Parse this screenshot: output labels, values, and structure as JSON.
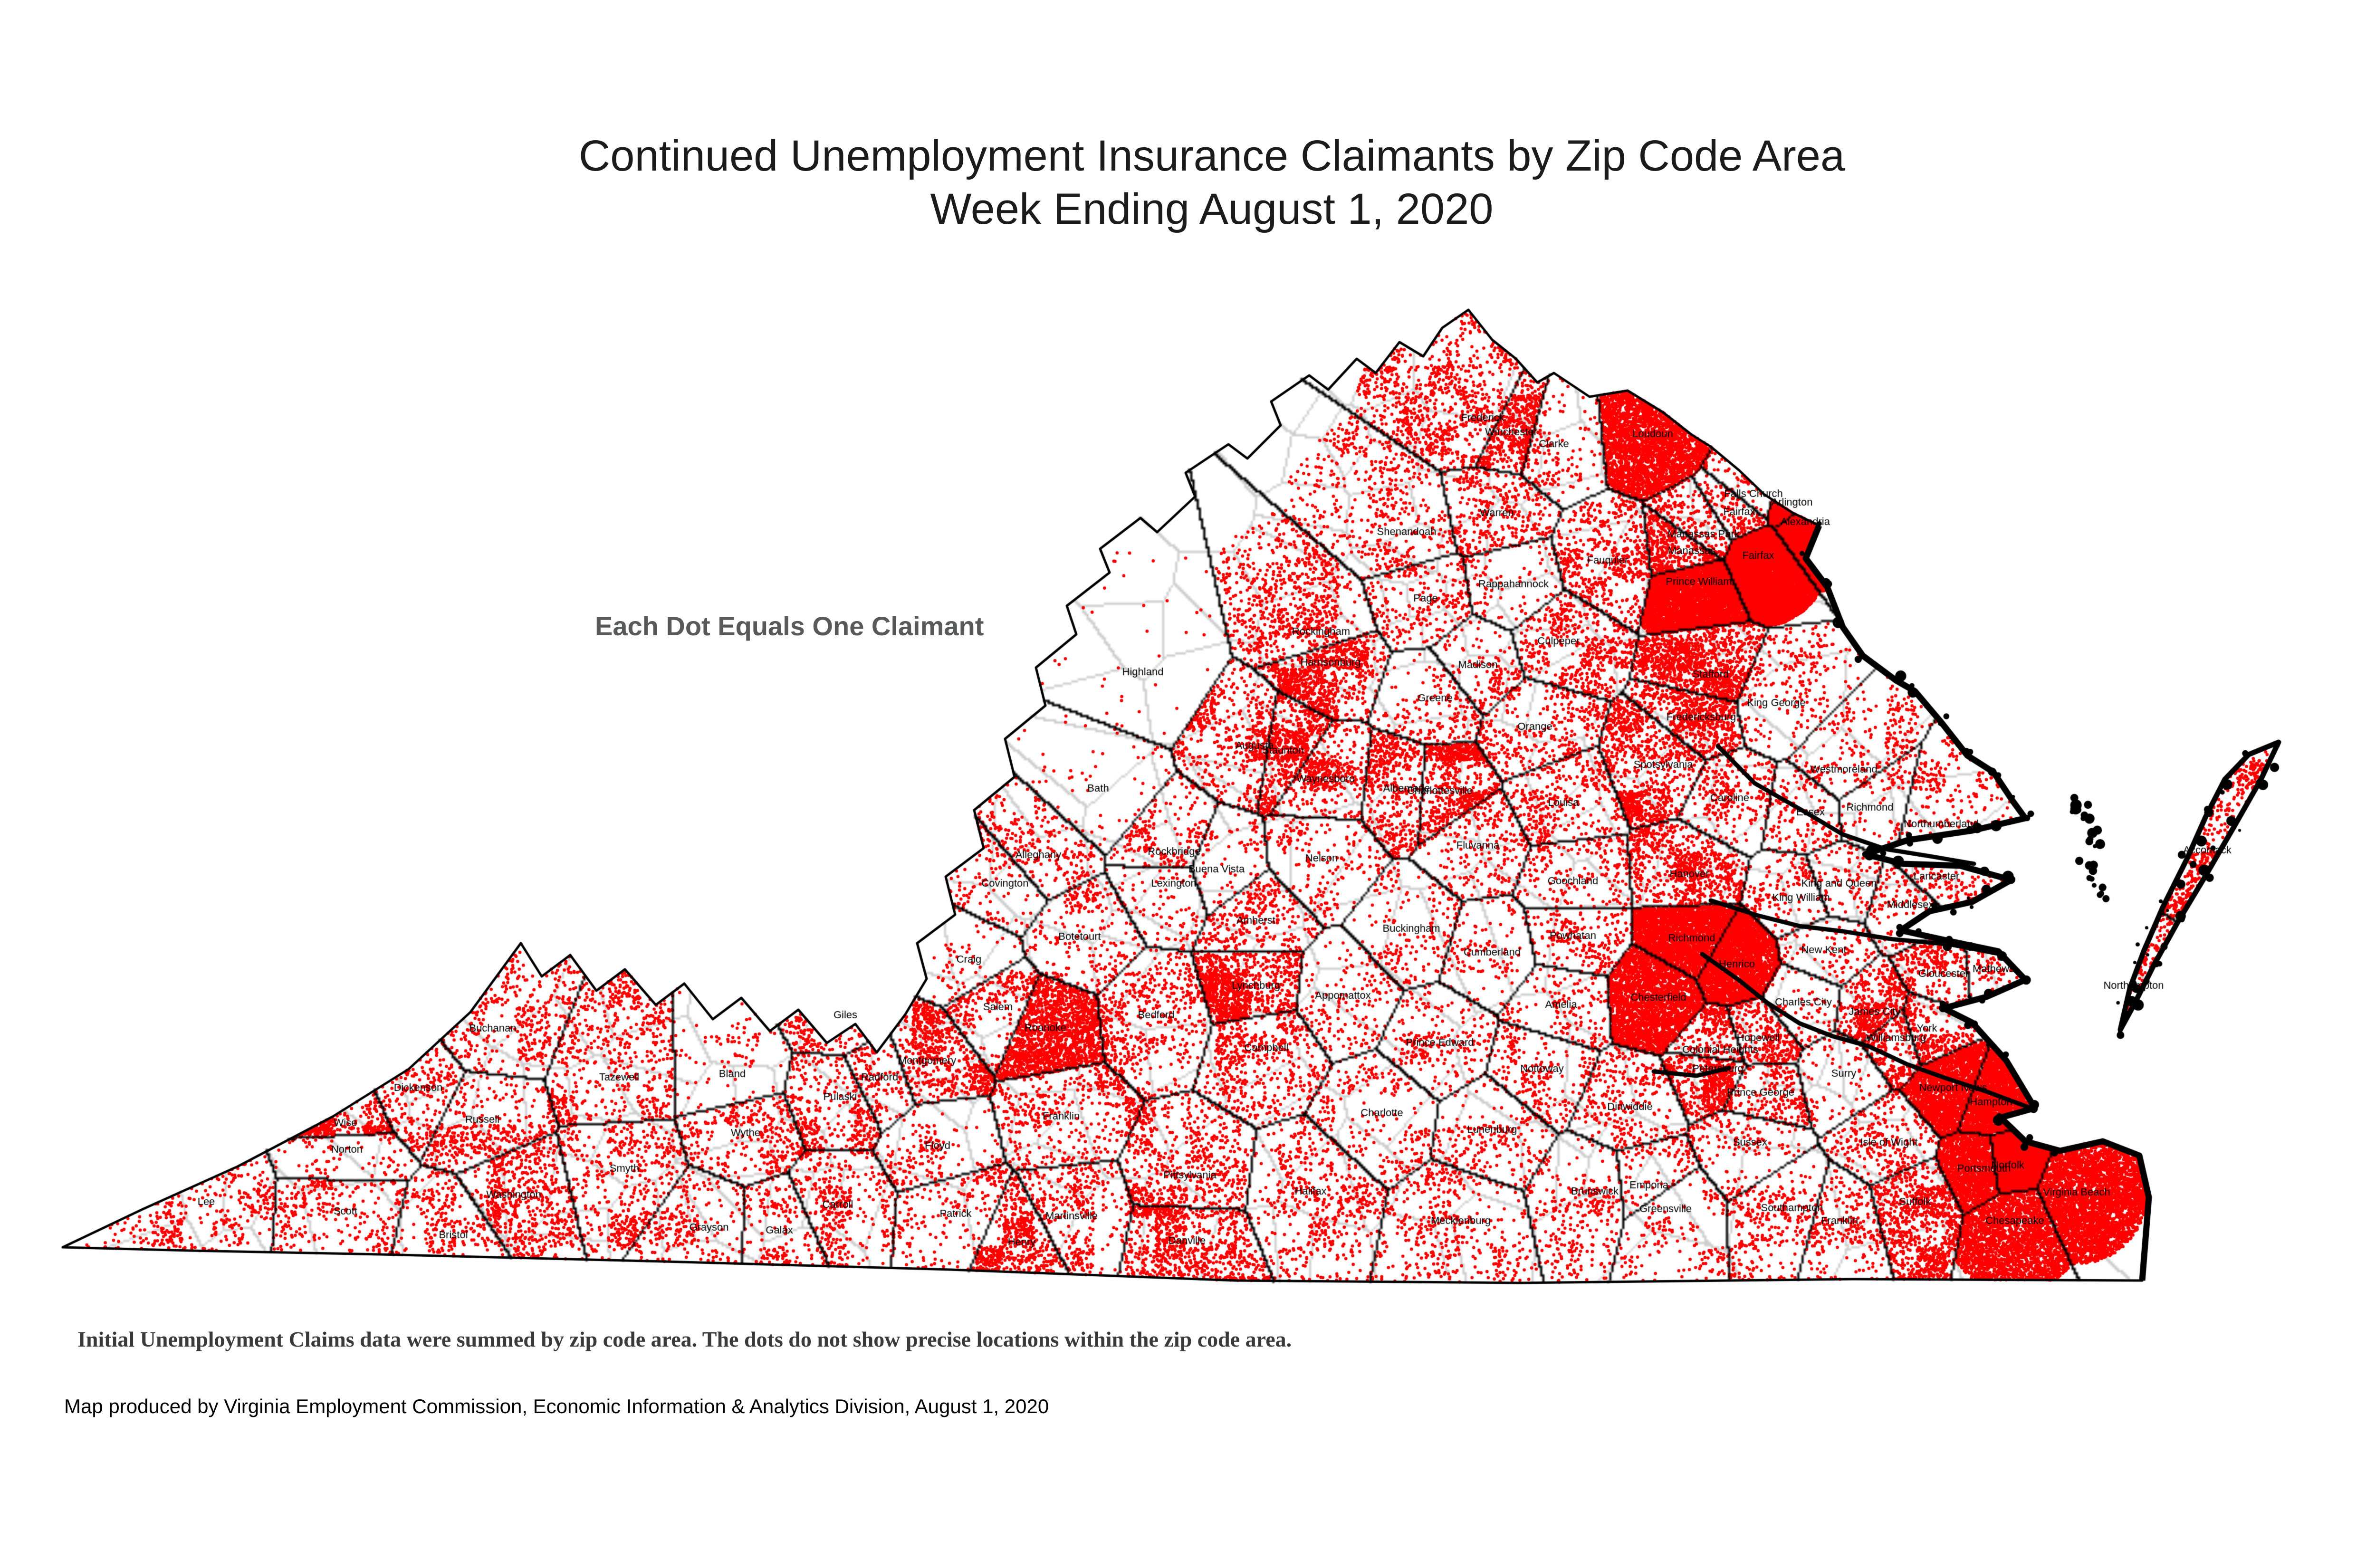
{
  "title": {
    "line1": "Continued Unemployment Insurance Claimants by Zip Code Area",
    "line2": "Week Ending August 1, 2020"
  },
  "legend": {
    "text": "Each Dot Equals One Claimant"
  },
  "footnotes": {
    "methodology": "Initial Unemployment Claims data were summed by zip code area. The dots do not show precise locations within the zip code area.",
    "credit": "Map produced by Virginia Employment Commission, Economic Information & Analytics Division,  August 1, 2020"
  },
  "map": {
    "dot_color": "#FF0000",
    "county_line_color": "#000000",
    "zip_line_color": "#B4B4B4",
    "water_detail_color": "#000000",
    "background": "#FFFFFF",
    "dot_radius": 3.4,
    "regions": [
      [
        "Lee",
        434,
        2530,
        350,
        1
      ],
      [
        "Scott",
        727,
        2550,
        300,
        1
      ],
      [
        "Wise",
        727,
        2364,
        650,
        1
      ],
      [
        "Norton",
        730,
        2420,
        90,
        1
      ],
      [
        "Dickenson",
        880,
        2290,
        300,
        1
      ],
      [
        "Buchanan",
        1037,
        2165,
        380,
        1
      ],
      [
        "Russell",
        1015,
        2357,
        420,
        1
      ],
      [
        "Tazewell",
        1303,
        2268,
        650,
        1
      ],
      [
        "Smyth",
        1314,
        2460,
        480,
        1
      ],
      [
        "Washington",
        1081,
        2515,
        600,
        1
      ],
      [
        "Bristol",
        954,
        2600,
        260,
        1
      ],
      [
        "Grayson",
        1492,
        2584,
        260,
        1
      ],
      [
        "Galax",
        1640,
        2590,
        220,
        1
      ],
      [
        "Carroll",
        1763,
        2536,
        420,
        1
      ],
      [
        "Wythe",
        1569,
        2385,
        420,
        1
      ],
      [
        "Bland",
        1541,
        2261,
        90,
        1
      ],
      [
        "Giles",
        1779,
        2137,
        220,
        1
      ],
      [
        "Pulaski",
        1768,
        2309,
        450,
        1
      ],
      [
        "Radford",
        1851,
        2268,
        220,
        1
      ],
      [
        "Montgomery",
        1951,
        2233,
        750,
        1
      ],
      [
        "Floyd",
        1973,
        2412,
        180,
        1
      ],
      [
        "Patrick",
        2011,
        2555,
        260,
        1
      ],
      [
        "Henry",
        2150,
        2615,
        600,
        1
      ],
      [
        "Martinsville",
        2255,
        2560,
        380,
        1
      ],
      [
        "Franklin",
        2233,
        2350,
        520,
        1
      ],
      [
        "Roanoke",
        2200,
        2164,
        1600,
        1
      ],
      [
        "Salem",
        2100,
        2120,
        320,
        1
      ],
      [
        "Botetourt",
        2272,
        1972,
        300,
        1
      ],
      [
        "Craig",
        2039,
        2020,
        80,
        1
      ],
      [
        "Alleghany",
        2185,
        1800,
        260,
        1
      ],
      [
        "Covington",
        2115,
        1860,
        160,
        1
      ],
      [
        "Bath",
        2311,
        1660,
        55,
        1
      ],
      [
        "Highland",
        2405,
        1415,
        40,
        1
      ],
      [
        "Rockbridge",
        2471,
        1793,
        280,
        1
      ],
      [
        "Lexington",
        2470,
        1860,
        130,
        1
      ],
      [
        "Buena Vista",
        2560,
        1830,
        130,
        1
      ],
      [
        "Amherst",
        2643,
        1938,
        360,
        1
      ],
      [
        "Nelson",
        2781,
        1807,
        200,
        1
      ],
      [
        "Appomattox",
        2826,
        2096,
        200,
        1
      ],
      [
        "Lynchburg",
        2643,
        2075,
        1300,
        1
      ],
      [
        "Bedford",
        2433,
        2137,
        520,
        1
      ],
      [
        "Campbell",
        2665,
        2206,
        520,
        1
      ],
      [
        "Pittsylvania",
        2504,
        2474,
        620,
        1
      ],
      [
        "Danville",
        2498,
        2612,
        900,
        1
      ],
      [
        "Halifax",
        2758,
        2508,
        520,
        1
      ],
      [
        "Charlotte",
        2908,
        2343,
        240,
        1
      ],
      [
        "Lunenburg",
        3140,
        2378,
        220,
        1
      ],
      [
        "Mecklenburg",
        3074,
        2570,
        420,
        1
      ],
      [
        "Brunswick",
        3356,
        2508,
        300,
        1
      ],
      [
        "Greensville",
        3505,
        2545,
        180,
        1
      ],
      [
        "Emporia",
        3470,
        2495,
        160,
        1
      ],
      [
        "Southampton",
        3771,
        2543,
        280,
        1
      ],
      [
        "Franklin",
        3871,
        2570,
        260,
        1
      ],
      [
        "Sussex",
        3683,
        2405,
        200,
        1
      ],
      [
        "Isle of Wight",
        3975,
        2405,
        340,
        1
      ],
      [
        "Suffolk",
        4030,
        2530,
        950,
        1
      ],
      [
        "Chesapeake",
        4240,
        2570,
        2300,
        1
      ],
      [
        "Portsmouth",
        4175,
        2460,
        1500,
        1
      ],
      [
        "Norfolk",
        4225,
        2453,
        2800,
        1
      ],
      [
        "Virginia Beach",
        4370,
        2510,
        3300,
        1
      ],
      [
        "Hampton",
        4190,
        2320,
        1800,
        1
      ],
      [
        "Newport News",
        4110,
        2290,
        1900,
        1
      ],
      [
        "York",
        4055,
        2165,
        420,
        1
      ],
      [
        "Williamsburg",
        3990,
        2185,
        380,
        1
      ],
      [
        "James City",
        3945,
        2130,
        600,
        1
      ],
      [
        "Gloucester",
        4090,
        2050,
        420,
        1
      ],
      [
        "Mathews",
        4195,
        2040,
        140,
        1
      ],
      [
        "Middlesex",
        4020,
        1905,
        180,
        1
      ],
      [
        "Lancaster",
        4075,
        1845,
        200,
        1
      ],
      [
        "Northumberland",
        4085,
        1735,
        220,
        1
      ],
      [
        "Richmond",
        3935,
        1700,
        110,
        1
      ],
      [
        "Westmoreland",
        3880,
        1620,
        240,
        1
      ],
      [
        "Essex",
        3810,
        1710,
        160,
        1
      ],
      [
        "King and Queen",
        3870,
        1860,
        110,
        1
      ],
      [
        "King William",
        3790,
        1890,
        200,
        1
      ],
      [
        "King George",
        3738,
        1480,
        260,
        1
      ],
      [
        "Caroline",
        3640,
        1680,
        300,
        1
      ],
      [
        "Hanover",
        3555,
        1840,
        850,
        1
      ],
      [
        "New Kent",
        3838,
        2000,
        240,
        1
      ],
      [
        "Charles City",
        3795,
        2110,
        110,
        1
      ],
      [
        "Henrico",
        3655,
        2030,
        2600,
        1
      ],
      [
        "Richmond",
        3560,
        1975,
        2600,
        1
      ],
      [
        "Chesterfield",
        3490,
        2100,
        2600,
        1
      ],
      [
        "Colonial Heights",
        3620,
        2210,
        420,
        1
      ],
      [
        "Hopewell",
        3700,
        2185,
        420,
        1
      ],
      [
        "Petersburg",
        3615,
        2250,
        850,
        1
      ],
      [
        "Prince George",
        3705,
        2300,
        420,
        1
      ],
      [
        "Dinwiddie",
        3430,
        2330,
        300,
        1
      ],
      [
        "Surry",
        3880,
        2260,
        110,
        1
      ],
      [
        "Amelia",
        3285,
        2115,
        200,
        1
      ],
      [
        "Nottoway",
        3245,
        2250,
        240,
        1
      ],
      [
        "Prince Edward",
        3030,
        2195,
        260,
        1
      ],
      [
        "Cumberland",
        3140,
        2005,
        120,
        1
      ],
      [
        "Buckingham",
        2970,
        1955,
        200,
        1
      ],
      [
        "Powhatan",
        3310,
        1970,
        260,
        1
      ],
      [
        "Goochland",
        3310,
        1855,
        260,
        1
      ],
      [
        "Fluvanna",
        3110,
        1780,
        260,
        1
      ],
      [
        "Louisa",
        3290,
        1690,
        360,
        1
      ],
      [
        "Albemarle",
        2960,
        1660,
        650,
        1
      ],
      [
        "Charlottesville",
        3030,
        1665,
        900,
        1
      ],
      [
        "Orange",
        3230,
        1530,
        360,
        1
      ],
      [
        "Madison",
        3110,
        1400,
        200,
        1
      ],
      [
        "Greene",
        3020,
        1470,
        200,
        1
      ],
      [
        "Culpeper",
        3280,
        1350,
        520,
        1
      ],
      [
        "Rappahannock",
        3185,
        1230,
        110,
        1
      ],
      [
        "Fauquier",
        3383,
        1180,
        560,
        1
      ],
      [
        "Warren",
        3150,
        1080,
        380,
        1
      ],
      [
        "Clarke",
        3270,
        935,
        160,
        1
      ],
      [
        "Frederick",
        3120,
        880,
        850,
        1
      ],
      [
        "Winchester",
        3180,
        910,
        750,
        1
      ],
      [
        "Shenandoah",
        2960,
        1120,
        480,
        1
      ],
      [
        "Page",
        3000,
        1260,
        320,
        1
      ],
      [
        "Rockingham",
        2780,
        1330,
        750,
        1
      ],
      [
        "Harrisonburg",
        2800,
        1395,
        950,
        1
      ],
      [
        "Augusta",
        2640,
        1570,
        550,
        1
      ],
      [
        "Staunton",
        2700,
        1580,
        750,
        1
      ],
      [
        "Waynesboro",
        2790,
        1640,
        550,
        1
      ],
      [
        "Stafford",
        3600,
        1420,
        1150,
        1
      ],
      [
        "Fredericksburg",
        3580,
        1510,
        750,
        1
      ],
      [
        "Spotsylvania",
        3500,
        1610,
        1000,
        1
      ],
      [
        "Loudoun",
        3478,
        914,
        2600,
        1
      ],
      [
        "Fairfax",
        3700,
        1170,
        6500,
        1
      ],
      [
        "Fairfax",
        3660,
        1078,
        330,
        1
      ],
      [
        "Falls Church",
        3690,
        1040,
        200,
        1
      ],
      [
        "Arlington",
        3771,
        1058,
        1900,
        1
      ],
      [
        "Alexandria",
        3799,
        1099,
        1900,
        1
      ],
      [
        "Manassas Park",
        3585,
        1125,
        330,
        1
      ],
      [
        "Manassas",
        3560,
        1160,
        650,
        1
      ],
      [
        "Prince William",
        3575,
        1225,
        3800,
        1
      ],
      [
        "Accomack",
        4645,
        1790,
        520,
        1
      ],
      [
        "Northampton",
        4490,
        2075,
        260,
        1
      ]
    ],
    "outline_mainland": [
      [
        132,
        2625
      ],
      [
        300,
        2545
      ],
      [
        500,
        2455
      ],
      [
        700,
        2350
      ],
      [
        860,
        2250
      ],
      [
        990,
        2130
      ],
      [
        1096,
        1985
      ],
      [
        1140,
        2055
      ],
      [
        1200,
        2010
      ],
      [
        1255,
        2085
      ],
      [
        1315,
        2040
      ],
      [
        1380,
        2115
      ],
      [
        1440,
        2070
      ],
      [
        1500,
        2145
      ],
      [
        1560,
        2100
      ],
      [
        1620,
        2170
      ],
      [
        1680,
        2125
      ],
      [
        1740,
        2195
      ],
      [
        1800,
        2155
      ],
      [
        1845,
        2215
      ],
      [
        1905,
        2135
      ],
      [
        1950,
        2060
      ],
      [
        1930,
        1985
      ],
      [
        2010,
        1925
      ],
      [
        1990,
        1845
      ],
      [
        2070,
        1785
      ],
      [
        2050,
        1705
      ],
      [
        2135,
        1635
      ],
      [
        2115,
        1555
      ],
      [
        2200,
        1485
      ],
      [
        2180,
        1405
      ],
      [
        2265,
        1335
      ],
      [
        2245,
        1275
      ],
      [
        2335,
        1205
      ],
      [
        2315,
        1155
      ],
      [
        2400,
        1090
      ],
      [
        2435,
        1120
      ],
      [
        2515,
        1045
      ],
      [
        2495,
        995
      ],
      [
        2585,
        935
      ],
      [
        2625,
        965
      ],
      [
        2695,
        895
      ],
      [
        2675,
        845
      ],
      [
        2755,
        790
      ],
      [
        2795,
        820
      ],
      [
        2855,
        755
      ],
      [
        2895,
        785
      ],
      [
        2945,
        720
      ],
      [
        2995,
        750
      ],
      [
        3035,
        690
      ],
      [
        3090,
        652
      ],
      [
        3140,
        715
      ],
      [
        3190,
        755
      ],
      [
        3235,
        805
      ],
      [
        3270,
        785
      ],
      [
        3345,
        835
      ],
      [
        3425,
        822
      ],
      [
        3500,
        868
      ],
      [
        3560,
        915
      ],
      [
        3600,
        940
      ],
      [
        3660,
        990
      ],
      [
        3712,
        1040
      ],
      [
        3770,
        1078
      ],
      [
        3828,
        1106
      ],
      [
        3800,
        1175
      ],
      [
        3845,
        1235
      ],
      [
        3878,
        1320
      ],
      [
        3920,
        1380
      ],
      [
        3990,
        1432
      ],
      [
        4030,
        1455
      ],
      [
        4085,
        1520
      ],
      [
        4140,
        1590
      ],
      [
        4195,
        1625
      ],
      [
        4235,
        1685
      ],
      [
        4262,
        1722
      ],
      [
        4150,
        1748
      ],
      [
        4015,
        1768
      ],
      [
        3925,
        1798
      ],
      [
        4005,
        1818
      ],
      [
        4125,
        1822
      ],
      [
        4232,
        1852
      ],
      [
        4150,
        1898
      ],
      [
        4060,
        1918
      ],
      [
        4000,
        1958
      ],
      [
        4100,
        1980
      ],
      [
        4205,
        2002
      ],
      [
        4262,
        2062
      ],
      [
        4180,
        2098
      ],
      [
        4090,
        2122
      ],
      [
        4150,
        2152
      ],
      [
        4222,
        2232
      ],
      [
        4282,
        2332
      ],
      [
        4210,
        2352
      ],
      [
        4262,
        2402
      ],
      [
        4335,
        2422
      ],
      [
        4425,
        2402
      ],
      [
        4502,
        2432
      ],
      [
        4522,
        2520
      ],
      [
        4508,
        2695
      ],
      [
        3900,
        2692
      ],
      [
        3200,
        2700
      ],
      [
        2600,
        2695
      ],
      [
        2000,
        2672
      ],
      [
        1400,
        2655
      ],
      [
        800,
        2640
      ],
      [
        400,
        2632
      ]
    ],
    "outline_eastern_shore": [
      [
        4795,
        1562
      ],
      [
        4758,
        1640
      ],
      [
        4700,
        1742
      ],
      [
        4642,
        1842
      ],
      [
        4582,
        1942
      ],
      [
        4532,
        2032
      ],
      [
        4492,
        2112
      ],
      [
        4462,
        2167
      ],
      [
        4482,
        2080
      ],
      [
        4512,
        2000
      ],
      [
        4552,
        1908
      ],
      [
        4602,
        1808
      ],
      [
        4642,
        1718
      ],
      [
        4682,
        1640
      ],
      [
        4732,
        1588
      ]
    ],
    "rivers": [
      [
        [
          3582,
          2008
        ],
        [
          3660,
          2065
        ],
        [
          3720,
          2110
        ],
        [
          3790,
          2155
        ],
        [
          3860,
          2180
        ],
        [
          3930,
          2205
        ],
        [
          4010,
          2240
        ],
        [
          4090,
          2265
        ],
        [
          4180,
          2300
        ],
        [
          4282,
          2335
        ]
      ],
      [
        [
          3480,
          2255
        ],
        [
          3570,
          2265
        ],
        [
          3640,
          2250
        ]
      ],
      [
        [
          3600,
          1895
        ],
        [
          3700,
          1925
        ],
        [
          3790,
          1945
        ],
        [
          3880,
          1958
        ],
        [
          3985,
          1975
        ],
        [
          4100,
          1990
        ],
        [
          4205,
          2005
        ]
      ],
      [
        [
          3615,
          1570
        ],
        [
          3695,
          1645
        ],
        [
          3790,
          1705
        ],
        [
          3880,
          1755
        ],
        [
          3970,
          1785
        ],
        [
          4060,
          1802
        ],
        [
          4152,
          1818
        ]
      ]
    ],
    "bay_islands": [
      [
        4385,
        1715
      ],
      [
        4405,
        1765
      ],
      [
        4390,
        1825
      ],
      [
        4415,
        1872
      ],
      [
        4372,
        1690
      ]
    ]
  }
}
